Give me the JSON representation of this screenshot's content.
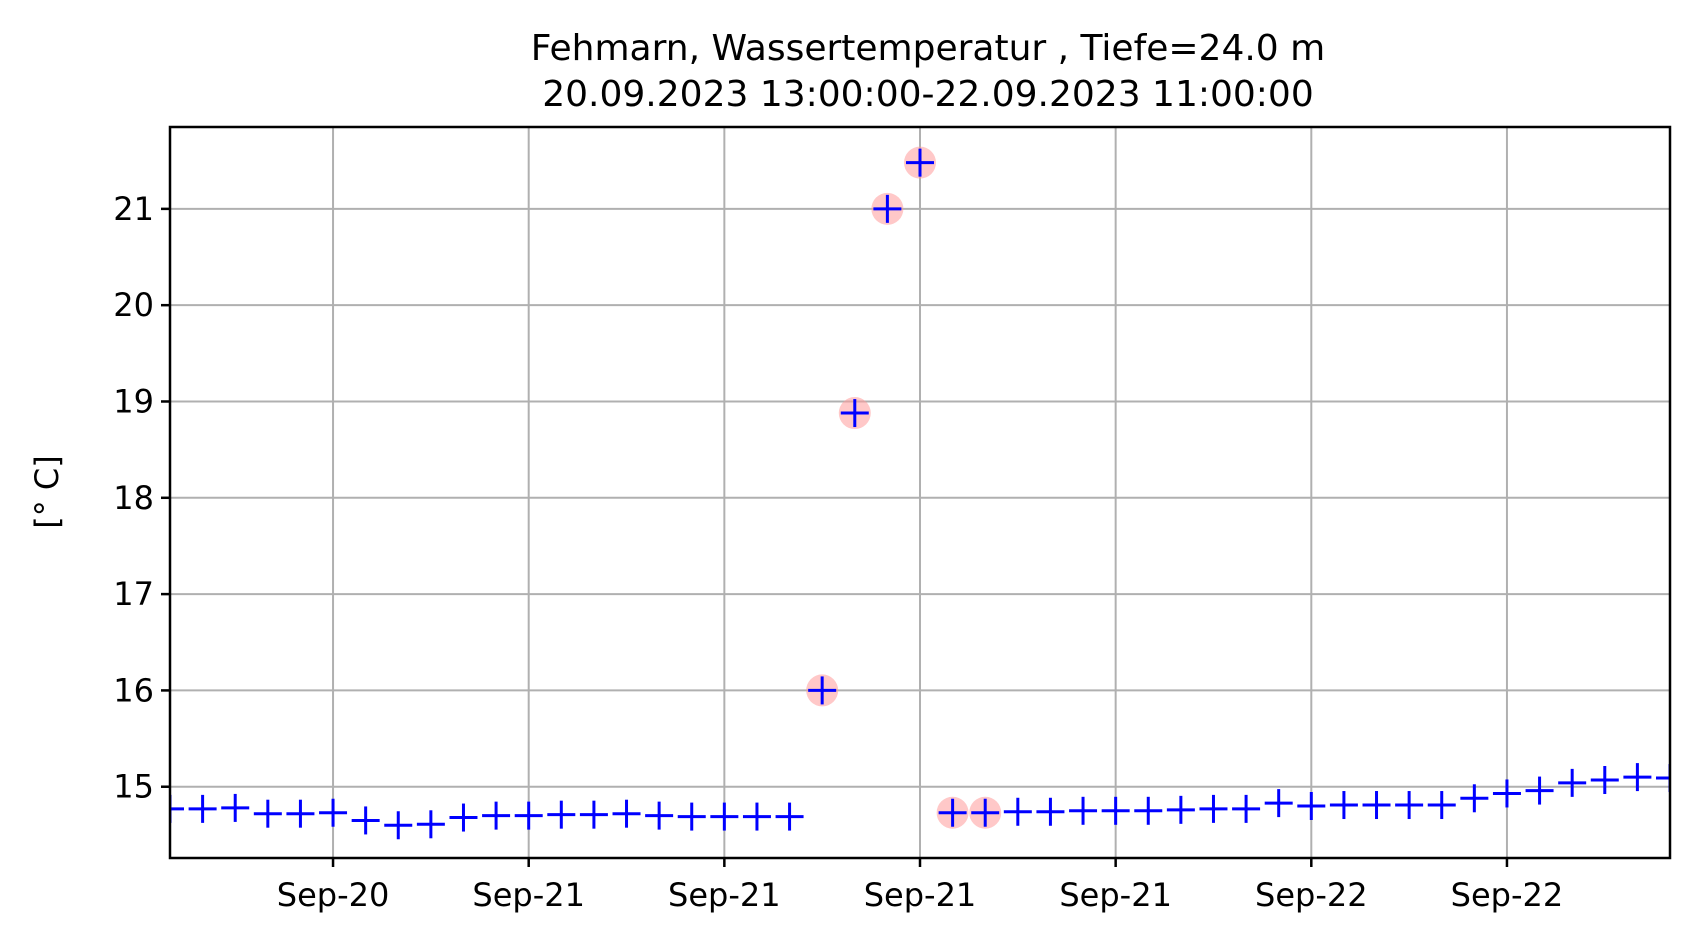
{
  "chart_data": {
    "type": "scatter",
    "title_line1": "Fehmarn, Wassertemperatur , Tiefe=24.0 m",
    "title_line2": "20.09.2023 13:00:00-22.09.2023 11:00:00",
    "ylabel": "[° C]",
    "xlabel": "",
    "ylim": [
      14.26,
      21.85
    ],
    "yticks": [
      15,
      16,
      17,
      18,
      19,
      20,
      21
    ],
    "xlim": [
      0,
      46
    ],
    "xticks": [
      {
        "x": 5,
        "label": "Sep-20"
      },
      {
        "x": 11,
        "label": "Sep-21"
      },
      {
        "x": 17,
        "label": "Sep-21"
      },
      {
        "x": 23,
        "label": "Sep-21"
      },
      {
        "x": 29,
        "label": "Sep-21"
      },
      {
        "x": 35,
        "label": "Sep-22"
      },
      {
        "x": 41,
        "label": "Sep-22"
      }
    ],
    "grid": true,
    "marker": "+",
    "marker_color": "#0000ff",
    "flag_color": "#ff9a9a",
    "series": [
      {
        "values": [
          {
            "x": 0,
            "y": 14.77
          },
          {
            "x": 1,
            "y": 14.77
          },
          {
            "x": 2,
            "y": 14.78
          },
          {
            "x": 3,
            "y": 14.72
          },
          {
            "x": 4,
            "y": 14.72
          },
          {
            "x": 5,
            "y": 14.73
          },
          {
            "x": 6,
            "y": 14.65
          },
          {
            "x": 7,
            "y": 14.6
          },
          {
            "x": 8,
            "y": 14.61
          },
          {
            "x": 9,
            "y": 14.68
          },
          {
            "x": 10,
            "y": 14.7
          },
          {
            "x": 11,
            "y": 14.7
          },
          {
            "x": 12,
            "y": 14.71
          },
          {
            "x": 13,
            "y": 14.71
          },
          {
            "x": 14,
            "y": 14.72
          },
          {
            "x": 15,
            "y": 14.7
          },
          {
            "x": 16,
            "y": 14.69
          },
          {
            "x": 17,
            "y": 14.69
          },
          {
            "x": 18,
            "y": 14.69
          },
          {
            "x": 19,
            "y": 14.69
          },
          {
            "x": 20,
            "y": 16.0,
            "flagged": true
          },
          {
            "x": 21,
            "y": 18.88,
            "flagged": true
          },
          {
            "x": 22,
            "y": 21.0,
            "flagged": true
          },
          {
            "x": 23,
            "y": 21.48,
            "flagged": true
          },
          {
            "x": 24,
            "y": 14.73,
            "flagged": true
          },
          {
            "x": 25,
            "y": 14.73,
            "flagged": true
          },
          {
            "x": 26,
            "y": 14.74
          },
          {
            "x": 27,
            "y": 14.74
          },
          {
            "x": 28,
            "y": 14.75
          },
          {
            "x": 29,
            "y": 14.75
          },
          {
            "x": 30,
            "y": 14.75
          },
          {
            "x": 31,
            "y": 14.76
          },
          {
            "x": 32,
            "y": 14.77
          },
          {
            "x": 33,
            "y": 14.77
          },
          {
            "x": 34,
            "y": 14.83
          },
          {
            "x": 35,
            "y": 14.8
          },
          {
            "x": 36,
            "y": 14.81
          },
          {
            "x": 37,
            "y": 14.81
          },
          {
            "x": 38,
            "y": 14.81
          },
          {
            "x": 39,
            "y": 14.81
          },
          {
            "x": 40,
            "y": 14.88
          },
          {
            "x": 41,
            "y": 14.93
          },
          {
            "x": 42,
            "y": 14.96
          },
          {
            "x": 43,
            "y": 15.04
          },
          {
            "x": 44,
            "y": 15.07
          },
          {
            "x": 45,
            "y": 15.1
          },
          {
            "x": 46,
            "y": 15.09
          }
        ]
      }
    ]
  }
}
